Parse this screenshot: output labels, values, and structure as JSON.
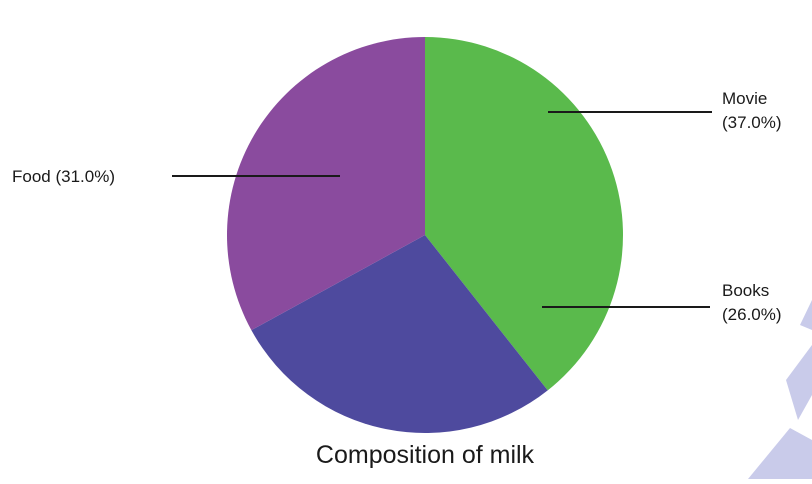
{
  "chart_data": {
    "type": "pie",
    "title": "Composition of milk",
    "slices": [
      {
        "name": "Movie",
        "value": 37.0,
        "label_lines": [
          "Movie",
          "(37.0%)"
        ],
        "color": "#5aba4c"
      },
      {
        "name": "Books",
        "value": 26.0,
        "label_lines": [
          "Books",
          "(26.0%)"
        ],
        "color": "#4e4a9e"
      },
      {
        "name": "Food",
        "value": 31.0,
        "label_lines": [
          "Food (31.0%)"
        ],
        "color": "#8a4b9e"
      }
    ],
    "colors": {
      "watermark": "#c9cbea"
    }
  }
}
